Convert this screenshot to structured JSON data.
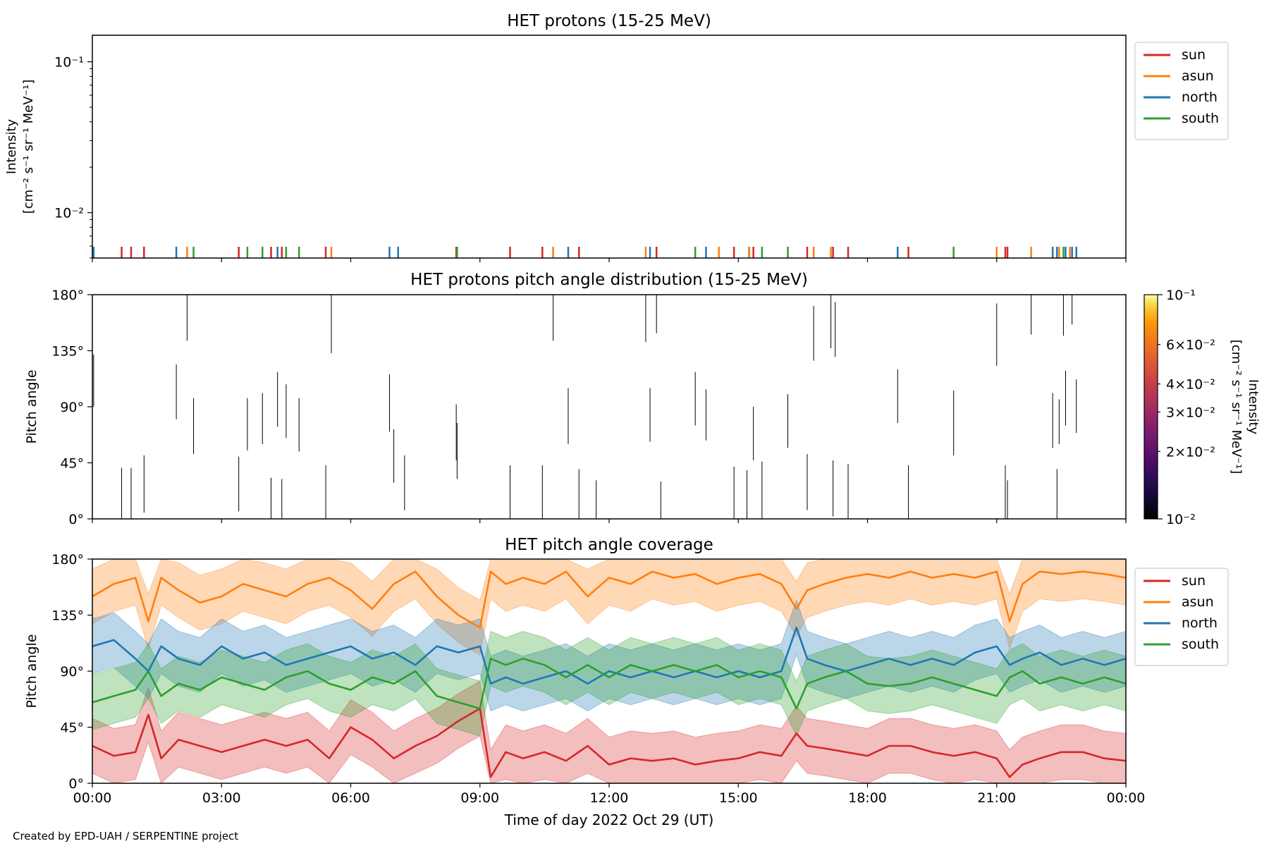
{
  "footer": "Created by EPD-UAH / SERPENTINE project",
  "xaxis": {
    "label": "Time of day 2022 Oct 29 (UT)",
    "range_hours": [
      0,
      24
    ],
    "ticks": [
      {
        "h": 0,
        "label": "00:00"
      },
      {
        "h": 3,
        "label": "03:00"
      },
      {
        "h": 6,
        "label": "06:00"
      },
      {
        "h": 9,
        "label": "09:00"
      },
      {
        "h": 12,
        "label": "12:00"
      },
      {
        "h": 15,
        "label": "15:00"
      },
      {
        "h": 18,
        "label": "18:00"
      },
      {
        "h": 21,
        "label": "21:00"
      },
      {
        "h": 24,
        "label": "00:00"
      }
    ]
  },
  "colors": {
    "sun": "#d62728",
    "asun": "#ff7f0e",
    "north": "#1f77b4",
    "south": "#2ca02c"
  },
  "legend": [
    "sun",
    "asun",
    "north",
    "south"
  ],
  "chart_data": [
    {
      "type": "line",
      "title": "HET protons (15-25 MeV)",
      "ylabel_line1": "Intensity",
      "ylabel_line2": "[cm⁻² s⁻¹ sr⁻¹ MeV⁻¹]",
      "yscale": "log",
      "ylim": [
        0.005,
        0.15
      ],
      "yticks": [
        {
          "v": 0.1,
          "label": "10⁻¹"
        },
        {
          "v": 0.01,
          "label": "10⁻²"
        }
      ],
      "legend_position": "outside-right",
      "series": [
        {
          "name": "sun",
          "spikes_hours": [
            0.68,
            0.9,
            1.2,
            3.4,
            4.15,
            4.4,
            5.42,
            8.45,
            9.7,
            10.45,
            11.3,
            13.1,
            14.9,
            15.25,
            15.35,
            16.6,
            17.2,
            17.55,
            18.95,
            21.2,
            21.25
          ]
        },
        {
          "name": "asun",
          "spikes_hours": [
            2.2,
            5.55,
            10.7,
            12.85,
            14.55,
            15.25,
            16.75,
            17.15,
            20.0,
            21.0,
            21.8,
            22.45,
            22.7
          ]
        },
        {
          "name": "north",
          "spikes_hours": [
            0.03,
            1.95,
            4.3,
            6.9,
            7.1,
            11.05,
            12.95,
            14.25,
            18.7,
            22.3,
            22.4,
            22.6,
            22.75,
            22.85
          ]
        },
        {
          "name": "south",
          "spikes_hours": [
            2.35,
            3.6,
            3.95,
            4.5,
            4.8,
            8.47,
            14.0,
            15.55,
            16.15,
            20.0,
            22.55
          ]
        }
      ]
    },
    {
      "type": "heatmap",
      "title": "HET protons pitch angle distribution (15-25 MeV)",
      "ylabel": "Pitch angle",
      "ylim": [
        0,
        180
      ],
      "yticks": [
        {
          "v": 0,
          "label": "0°"
        },
        {
          "v": 45,
          "label": "45°"
        },
        {
          "v": 90,
          "label": "90°"
        },
        {
          "v": 135,
          "label": "135°"
        },
        {
          "v": 180,
          "label": "180°"
        }
      ],
      "colorbar": {
        "label_line1": "Intensity",
        "label_line2": "[cm⁻² s⁻¹ sr⁻¹ MeV⁻¹]",
        "scale": "log",
        "range": [
          0.01,
          0.1
        ],
        "ticks": [
          {
            "v": 0.1,
            "label": "10⁻¹",
            "major": true
          },
          {
            "v": 0.06,
            "label": "6×10⁻²",
            "major": false
          },
          {
            "v": 0.04,
            "label": "4×10⁻²",
            "major": false
          },
          {
            "v": 0.03,
            "label": "3×10⁻²",
            "major": false
          },
          {
            "v": 0.02,
            "label": "2×10⁻²",
            "major": false
          },
          {
            "v": 0.01,
            "label": "10⁻²",
            "major": true
          }
        ]
      },
      "segments": [
        [
          0.03,
          90,
          132
        ],
        [
          0.68,
          0,
          41
        ],
        [
          0.9,
          0,
          41
        ],
        [
          1.2,
          5,
          51
        ],
        [
          1.95,
          80,
          124
        ],
        [
          2.2,
          143,
          180
        ],
        [
          2.35,
          52,
          97
        ],
        [
          3.4,
          6,
          50
        ],
        [
          3.6,
          55,
          97
        ],
        [
          3.95,
          60,
          101
        ],
        [
          4.15,
          0,
          33
        ],
        [
          4.3,
          74,
          118
        ],
        [
          4.4,
          0,
          32
        ],
        [
          4.5,
          65,
          108
        ],
        [
          4.8,
          54,
          97
        ],
        [
          5.42,
          0,
          43
        ],
        [
          5.55,
          133,
          180
        ],
        [
          6.9,
          70,
          116
        ],
        [
          7.0,
          29,
          72
        ],
        [
          7.25,
          7,
          51
        ],
        [
          8.45,
          47,
          92
        ],
        [
          8.47,
          32,
          77
        ],
        [
          9.7,
          0,
          43
        ],
        [
          10.45,
          0,
          43
        ],
        [
          10.7,
          143,
          180
        ],
        [
          11.05,
          60,
          105
        ],
        [
          11.3,
          0,
          40
        ],
        [
          11.7,
          0,
          31
        ],
        [
          12.85,
          142,
          180
        ],
        [
          12.95,
          62,
          105
        ],
        [
          13.1,
          149,
          180
        ],
        [
          13.2,
          0,
          30
        ],
        [
          14.0,
          75,
          118
        ],
        [
          14.25,
          63,
          104
        ],
        [
          14.9,
          0,
          42
        ],
        [
          15.2,
          0,
          39
        ],
        [
          15.35,
          47,
          90
        ],
        [
          15.55,
          0,
          46
        ],
        [
          16.15,
          57,
          100
        ],
        [
          16.6,
          7,
          52
        ],
        [
          16.75,
          127,
          171
        ],
        [
          17.15,
          137,
          180
        ],
        [
          17.2,
          2,
          47
        ],
        [
          17.25,
          130,
          174
        ],
        [
          17.55,
          0,
          44
        ],
        [
          18.7,
          77,
          120
        ],
        [
          18.95,
          0,
          43
        ],
        [
          20.0,
          51,
          103
        ],
        [
          21.0,
          123,
          173
        ],
        [
          21.2,
          0,
          43
        ],
        [
          21.25,
          0,
          31
        ],
        [
          21.8,
          148,
          180
        ],
        [
          22.3,
          57,
          101
        ],
        [
          22.4,
          0,
          40
        ],
        [
          22.45,
          60,
          96
        ],
        [
          22.55,
          147,
          180
        ],
        [
          22.6,
          75,
          119
        ],
        [
          22.75,
          156,
          180
        ],
        [
          22.85,
          69,
          112
        ]
      ]
    },
    {
      "type": "area",
      "title": "HET pitch angle coverage",
      "ylabel": "Pitch angle",
      "ylim": [
        0,
        180
      ],
      "yticks": [
        {
          "v": 0,
          "label": "0°"
        },
        {
          "v": 45,
          "label": "45°"
        },
        {
          "v": 90,
          "label": "90°"
        },
        {
          "v": 135,
          "label": "135°"
        },
        {
          "v": 180,
          "label": "180°"
        }
      ],
      "legend_position": "outside-right",
      "band_halfwidth_deg": 22,
      "series": [
        {
          "name": "sun",
          "x_hours": [
            0,
            0.5,
            1,
            1.3,
            1.6,
            2,
            2.5,
            3,
            3.5,
            4,
            4.5,
            5,
            5.5,
            6,
            6.5,
            7,
            7.5,
            8,
            8.5,
            9,
            9.25,
            9.6,
            10,
            10.5,
            11,
            11.5,
            12,
            12.5,
            13,
            13.5,
            14,
            14.5,
            15,
            15.5,
            16,
            16.35,
            16.6,
            17,
            17.5,
            18,
            18.5,
            19,
            19.5,
            20,
            20.5,
            21,
            21.3,
            21.6,
            22,
            22.5,
            23,
            23.5,
            24
          ],
          "mid": [
            30,
            22,
            25,
            55,
            20,
            35,
            30,
            25,
            30,
            35,
            30,
            35,
            20,
            45,
            35,
            20,
            30,
            38,
            50,
            60,
            5,
            25,
            20,
            25,
            18,
            30,
            15,
            20,
            18,
            20,
            15,
            18,
            20,
            25,
            22,
            40,
            30,
            28,
            25,
            22,
            30,
            30,
            25,
            22,
            25,
            20,
            5,
            15,
            20,
            25,
            25,
            20,
            18
          ]
        },
        {
          "name": "asun",
          "x_hours": [
            0,
            0.5,
            1,
            1.3,
            1.6,
            2,
            2.5,
            3,
            3.5,
            4,
            4.5,
            5,
            5.5,
            6,
            6.5,
            7,
            7.5,
            8,
            8.5,
            9,
            9.25,
            9.6,
            10,
            10.5,
            11,
            11.5,
            12,
            12.5,
            13,
            13.5,
            14,
            14.5,
            15,
            15.5,
            16,
            16.35,
            16.6,
            17,
            17.5,
            18,
            18.5,
            19,
            19.5,
            20,
            20.5,
            21,
            21.3,
            21.6,
            22,
            22.5,
            23,
            23.5,
            24
          ],
          "mid": [
            150,
            160,
            165,
            130,
            165,
            155,
            145,
            150,
            160,
            155,
            150,
            160,
            165,
            155,
            140,
            160,
            170,
            150,
            135,
            125,
            170,
            160,
            165,
            160,
            170,
            150,
            165,
            160,
            170,
            165,
            168,
            160,
            165,
            168,
            160,
            140,
            155,
            160,
            165,
            168,
            165,
            170,
            165,
            168,
            165,
            170,
            130,
            160,
            170,
            168,
            170,
            168,
            165
          ]
        },
        {
          "name": "north",
          "x_hours": [
            0,
            0.5,
            1,
            1.3,
            1.6,
            2,
            2.5,
            3,
            3.5,
            4,
            4.5,
            5,
            5.5,
            6,
            6.5,
            7,
            7.5,
            8,
            8.5,
            9,
            9.25,
            9.6,
            10,
            10.5,
            11,
            11.5,
            12,
            12.5,
            13,
            13.5,
            14,
            14.5,
            15,
            15.5,
            16,
            16.35,
            16.6,
            17,
            17.5,
            18,
            18.5,
            19,
            19.5,
            20,
            20.5,
            21,
            21.3,
            21.6,
            22,
            22.5,
            23,
            23.5,
            24
          ],
          "mid": [
            110,
            115,
            100,
            90,
            110,
            100,
            95,
            110,
            100,
            105,
            95,
            100,
            105,
            110,
            100,
            105,
            95,
            110,
            105,
            110,
            80,
            85,
            80,
            85,
            90,
            80,
            90,
            85,
            90,
            85,
            90,
            85,
            90,
            85,
            90,
            125,
            100,
            95,
            90,
            95,
            100,
            95,
            100,
            95,
            105,
            110,
            95,
            100,
            105,
            95,
            100,
            95,
            100
          ]
        },
        {
          "name": "south",
          "x_hours": [
            0,
            0.5,
            1,
            1.3,
            1.6,
            2,
            2.5,
            3,
            3.5,
            4,
            4.5,
            5,
            5.5,
            6,
            6.5,
            7,
            7.5,
            8,
            8.5,
            9,
            9.25,
            9.6,
            10,
            10.5,
            11,
            11.5,
            12,
            12.5,
            13,
            13.5,
            14,
            14.5,
            15,
            15.5,
            16,
            16.35,
            16.6,
            17,
            17.5,
            18,
            18.5,
            19,
            19.5,
            20,
            20.5,
            21,
            21.3,
            21.6,
            22,
            22.5,
            23,
            23.5,
            24
          ],
          "mid": [
            65,
            70,
            75,
            90,
            70,
            80,
            75,
            85,
            80,
            75,
            85,
            90,
            80,
            75,
            85,
            80,
            90,
            70,
            65,
            60,
            100,
            95,
            100,
            95,
            85,
            95,
            85,
            95,
            90,
            95,
            90,
            95,
            85,
            90,
            85,
            60,
            80,
            85,
            90,
            80,
            78,
            80,
            85,
            80,
            75,
            70,
            85,
            90,
            80,
            85,
            80,
            85,
            80
          ]
        }
      ]
    }
  ]
}
